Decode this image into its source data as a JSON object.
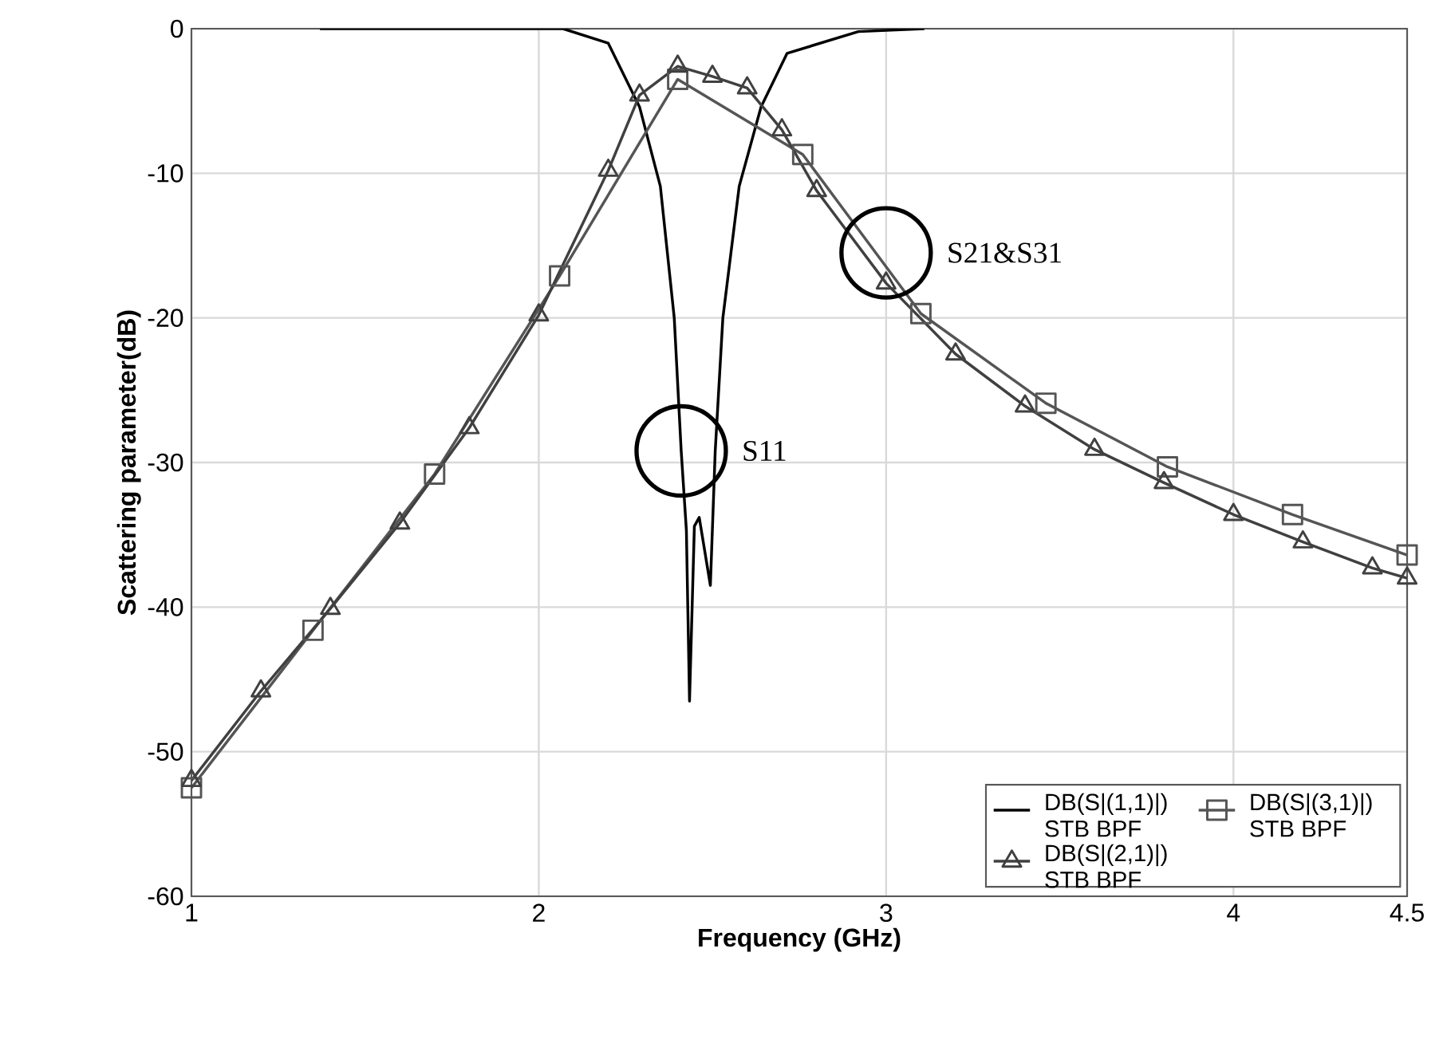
{
  "chart_data": {
    "type": "line",
    "xlabel": "Frequency (GHz)",
    "ylabel": "Scattering parameter(dB)",
    "xlim": [
      1,
      4.5
    ],
    "ylim": [
      -60,
      0
    ],
    "xticks": [
      1,
      2,
      3,
      4,
      4.5
    ],
    "yticks": [
      -60,
      -50,
      -40,
      -30,
      -20,
      -10,
      0
    ],
    "grid": true,
    "legend": "bottom right",
    "line_style": "solid",
    "series": [
      {
        "name": "DB(S|(1,1)|) STB BPF",
        "color": "#000000",
        "marker": "none",
        "x": [
          1.37,
          2.07,
          2.2,
          2.29,
          2.35,
          2.39,
          2.41,
          2.425,
          2.434,
          2.448,
          2.462,
          2.494,
          2.508,
          2.53,
          2.577,
          2.64,
          2.715,
          2.92,
          3.11
        ],
        "values": [
          0,
          0,
          -1.0,
          -5.4,
          -10.9,
          -20,
          -29.2,
          -34.7,
          -46.5,
          -34.4,
          -33.8,
          -38.5,
          -29.2,
          -20,
          -10.9,
          -5.4,
          -1.7,
          -0.2,
          0
        ]
      },
      {
        "name": "DB(S|(3,1)|) STB BPF",
        "color": "#555555",
        "marker": "square",
        "x": [
          1.0,
          1.35,
          1.7,
          2.06,
          2.4,
          2.76,
          3.1,
          3.46,
          3.81,
          4.17,
          4.5
        ],
        "values": [
          -52.5,
          -41.6,
          -30.8,
          -17.1,
          -3.5,
          -8.7,
          -19.7,
          -25.9,
          -30.3,
          -33.6,
          -36.4
        ]
      },
      {
        "name": "DB(S|(2,1)|) STB BPF",
        "color": "#404040",
        "marker": "triangle",
        "x": [
          1.0,
          1.2,
          1.4,
          1.6,
          1.8,
          2.0,
          2.2,
          2.29,
          2.4,
          2.5,
          2.6,
          2.7,
          2.8,
          3.0,
          3.2,
          3.4,
          3.6,
          3.8,
          4.0,
          4.2,
          4.4,
          4.5
        ],
        "values": [
          -52.0,
          -45.8,
          -40.1,
          -34.2,
          -27.6,
          -19.8,
          -9.8,
          -4.6,
          -2.6,
          -3.3,
          -4.1,
          -7.0,
          -11.2,
          -17.6,
          -22.5,
          -26.1,
          -29.1,
          -31.4,
          -33.6,
          -35.5,
          -37.3,
          -38.0
        ]
      }
    ],
    "annotations": [
      {
        "text": "S11",
        "x": 2.41,
        "y": -29.2
      },
      {
        "text": "S21&S31",
        "x": 3.0,
        "y": -15.5
      }
    ]
  }
}
